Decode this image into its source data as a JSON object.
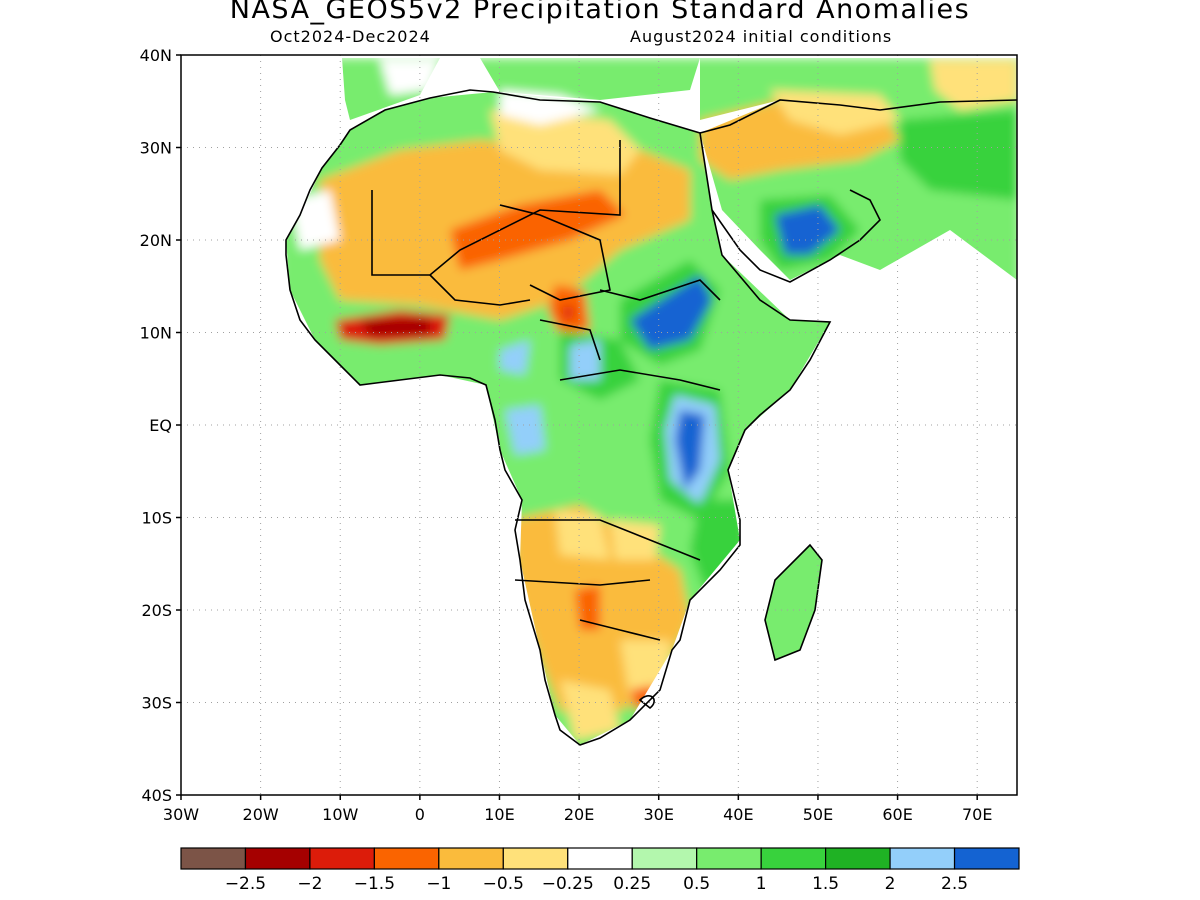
{
  "header": {
    "title": "NASA_GEOS5v2 Precipitation Standard Anomalies",
    "period": "Oct2024-Dec2024",
    "init": "August2024 initial conditions"
  },
  "map": {
    "lat_labels": [
      "40N",
      "30N",
      "20N",
      "10N",
      "EQ",
      "10S",
      "20S",
      "30S",
      "40S"
    ],
    "lon_labels": [
      "30W",
      "20W",
      "10W",
      "0",
      "10E",
      "20E",
      "30E",
      "40E",
      "50E",
      "60E",
      "70E"
    ],
    "lon_range": [
      -30,
      75
    ],
    "lat_range": [
      -40,
      40
    ],
    "grid": true
  },
  "colorbar": {
    "colors": [
      "#7c5447",
      "#a50000",
      "#dc1c0a",
      "#fa6400",
      "#fabb3c",
      "#ffe17a",
      "#ffffff",
      "#b3f7ad",
      "#78ec6e",
      "#38d23d",
      "#1fb224",
      "#93cffa",
      "#1463d2"
    ],
    "labels": [
      "−2.5",
      "−2",
      "−1.5",
      "−1",
      "−0.5",
      "−0.25",
      "0.25",
      "0.5",
      "1",
      "1.5",
      "2",
      "2.5"
    ]
  }
}
